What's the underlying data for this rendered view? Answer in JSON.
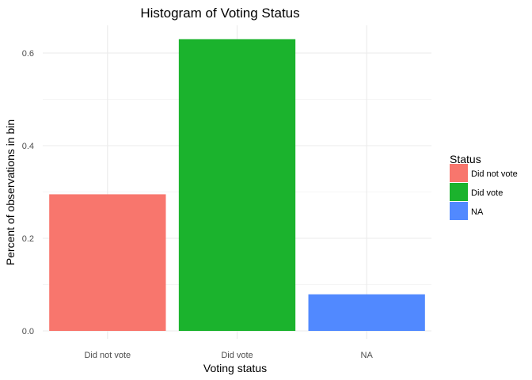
{
  "chart_data": {
    "type": "bar",
    "title": "Histogram of Voting Status",
    "xlabel": "Voting status",
    "ylabel": "Percent of observations in bin",
    "categories": [
      "Did not vote",
      "Did vote",
      "NA"
    ],
    "values": [
      0.295,
      0.63,
      0.079
    ],
    "ylim": [
      0,
      0.64
    ],
    "yticks": [
      0.0,
      0.2,
      0.4,
      0.6
    ],
    "ytick_labels": [
      "0.0",
      "0.2",
      "0.4",
      "0.6"
    ],
    "colors": [
      "#F8766D",
      "#1BB32D",
      "#5189FF"
    ],
    "grid": true,
    "legend": {
      "title": "Status",
      "position": "right",
      "entries": [
        "Did not vote",
        "Did vote",
        "NA"
      ]
    }
  }
}
